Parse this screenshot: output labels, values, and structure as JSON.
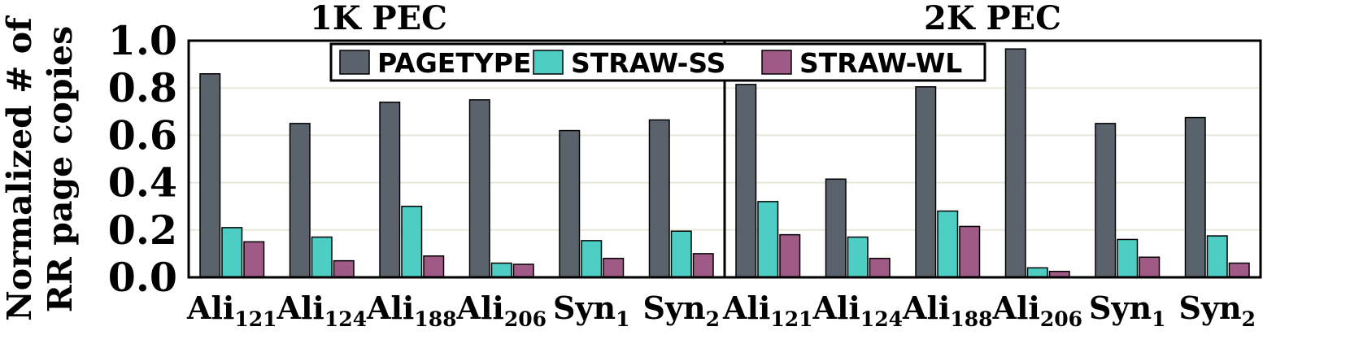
{
  "chart_data": {
    "type": "bar",
    "ylabel_line1": "Normalized # of",
    "ylabel_line2": "RR page copies",
    "ylim": [
      0,
      1.0
    ],
    "yticks": [
      "0.0",
      "0.2",
      "0.4",
      "0.6",
      "0.8",
      "1.0"
    ],
    "grid": true,
    "legend_position": "top-center",
    "groups": [
      {
        "title": "1K PEC",
        "categories": [
          {
            "base": "Ali",
            "sub": "121"
          },
          {
            "base": "Ali",
            "sub": "124"
          },
          {
            "base": "Ali",
            "sub": "188"
          },
          {
            "base": "Ali",
            "sub": "206"
          },
          {
            "base": "Syn",
            "sub": "1"
          },
          {
            "base": "Syn",
            "sub": "2"
          }
        ],
        "series": [
          {
            "name": "PAGETYPE",
            "values": [
              0.86,
              0.65,
              0.74,
              0.75,
              0.62,
              0.665
            ]
          },
          {
            "name": "STRAW-SS",
            "values": [
              0.21,
              0.17,
              0.3,
              0.06,
              0.155,
              0.195
            ]
          },
          {
            "name": "STRAW-WL",
            "values": [
              0.15,
              0.07,
              0.09,
              0.055,
              0.08,
              0.1
            ]
          }
        ]
      },
      {
        "title": "2K PEC",
        "categories": [
          {
            "base": "Ali",
            "sub": "121"
          },
          {
            "base": "Ali",
            "sub": "124"
          },
          {
            "base": "Ali",
            "sub": "188"
          },
          {
            "base": "Ali",
            "sub": "206"
          },
          {
            "base": "Syn",
            "sub": "1"
          },
          {
            "base": "Syn",
            "sub": "2"
          }
        ],
        "series": [
          {
            "name": "PAGETYPE",
            "values": [
              0.815,
              0.415,
              0.805,
              0.965,
              0.65,
              0.675
            ]
          },
          {
            "name": "STRAW-SS",
            "values": [
              0.32,
              0.17,
              0.28,
              0.04,
              0.16,
              0.175
            ]
          },
          {
            "name": "STRAW-WL",
            "values": [
              0.18,
              0.08,
              0.215,
              0.025,
              0.085,
              0.06
            ]
          }
        ]
      }
    ],
    "colors": {
      "PAGETYPE": "#5a636b",
      "STRAW-SS": "#4ecdc4",
      "STRAW-WL": "#a05a86",
      "grid": "#e8e8d8"
    }
  }
}
